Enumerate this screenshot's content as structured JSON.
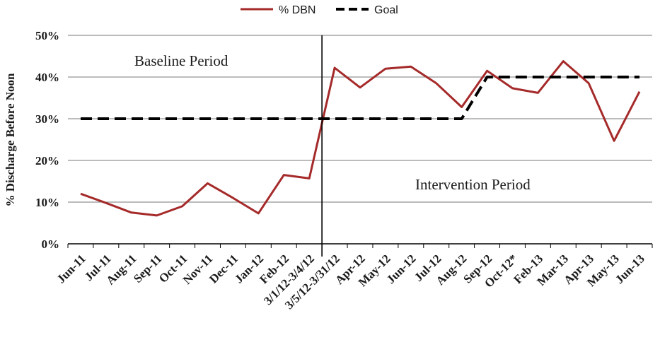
{
  "chart_data": {
    "type": "line",
    "ylabel": "% Discharge Before Noon",
    "ylim": [
      0,
      50
    ],
    "yticks": [
      "0%",
      "10%",
      "20%",
      "30%",
      "40%",
      "50%"
    ],
    "grid": true,
    "legend_position": "top",
    "categories": [
      "Jun-11",
      "Jul-11",
      "Aug-11",
      "Sep-11",
      "Oct-11",
      "Nov-11",
      "Dec-11",
      "Jan-12",
      "Feb-12",
      "3/1/12-3/4/12",
      "3/5/12-3/31/12",
      "Apr-12",
      "May-12",
      "Jun-12",
      "Jul-12",
      "Aug-12",
      "Sep-12",
      "Oct-12*",
      "Feb-13",
      "Mar-13",
      "Apr-13",
      "May-13",
      "Jun-13"
    ],
    "series": [
      {
        "name": "% DBN",
        "color": "#a52a2a",
        "style": "solid",
        "values": [
          12,
          9.8,
          7.5,
          6.8,
          9,
          14.5,
          11,
          7.3,
          16.5,
          15.7,
          42.2,
          37.5,
          42,
          42.5,
          38.5,
          32.8,
          41.5,
          37.3,
          36.2,
          43.8,
          38.5,
          24.7,
          36.5
        ]
      },
      {
        "name": "Goal",
        "color": "#000000",
        "style": "dashed",
        "values": [
          30,
          30,
          30,
          30,
          30,
          30,
          30,
          30,
          30,
          30,
          30,
          30,
          30,
          30,
          30,
          30,
          40,
          40,
          40,
          40,
          40,
          40,
          40
        ]
      }
    ],
    "divider_after_category": "3/1/12-3/4/12",
    "annotations": [
      "Baseline Period",
      "Intervention Period"
    ]
  }
}
